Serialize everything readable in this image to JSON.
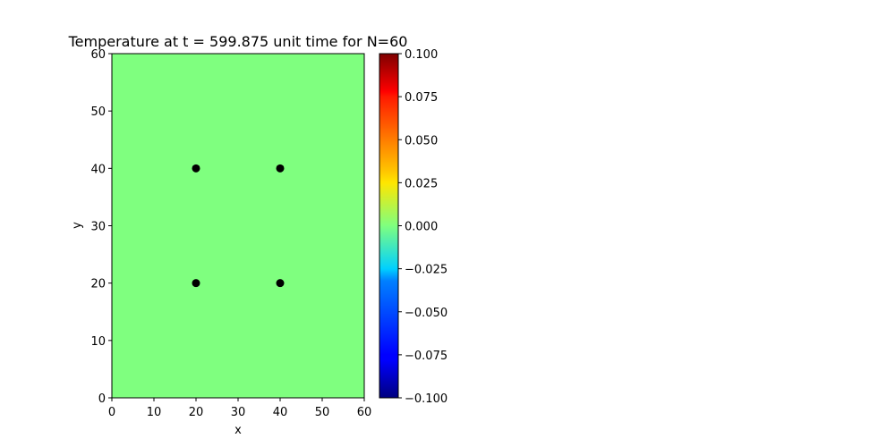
{
  "chart_data": {
    "type": "heatmap",
    "title": "Temperature at t = 599.875 unit time for N=60",
    "xlabel": "x",
    "ylabel": "y",
    "xlim": [
      0,
      60
    ],
    "ylim": [
      0,
      60
    ],
    "xticks": [
      "0",
      "10",
      "20",
      "30",
      "40",
      "50",
      "60"
    ],
    "yticks": [
      "0",
      "10",
      "20",
      "30",
      "40",
      "50",
      "60"
    ],
    "field_value": 0.0,
    "field_color": "#7fff7f",
    "grid": false,
    "points": [
      {
        "x": 20,
        "y": 40
      },
      {
        "x": 40,
        "y": 40
      },
      {
        "x": 20,
        "y": 20
      },
      {
        "x": 40,
        "y": 20
      }
    ],
    "point_color": "#000000",
    "colorbar": {
      "colormap": "jet",
      "range": [
        -0.1,
        0.1
      ],
      "placement": "right",
      "ticks": [
        "0.100",
        "0.075",
        "0.050",
        "0.025",
        "0.000",
        "−0.025",
        "−0.050",
        "−0.075",
        "−0.100"
      ],
      "tick_values": [
        0.1,
        0.075,
        0.05,
        0.025,
        0.0,
        -0.025,
        -0.05,
        -0.075,
        -0.1
      ]
    }
  }
}
